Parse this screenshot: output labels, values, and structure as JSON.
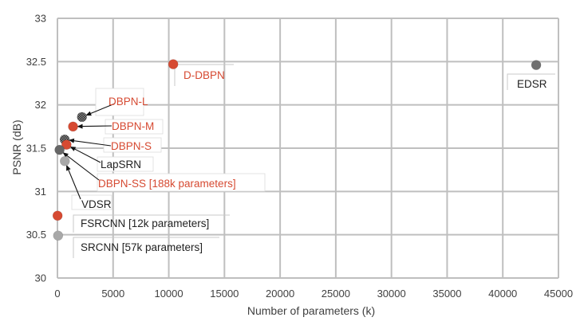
{
  "chart_data": {
    "type": "scatter",
    "title": "",
    "xlabel": "Number of parameters (k)",
    "ylabel": "PSNR (dB)",
    "xlim": [
      0,
      45000
    ],
    "ylim": [
      30,
      33
    ],
    "x_ticks": [
      0,
      5000,
      10000,
      15000,
      20000,
      25000,
      30000,
      35000,
      40000,
      45000
    ],
    "y_ticks": [
      30,
      30.5,
      31,
      31.5,
      32,
      32.5,
      33
    ],
    "grid": true,
    "legend": "none",
    "colors": {
      "red": "#d64a32",
      "gray": "#666666",
      "light_gray": "#a8a8a8",
      "dark_checker": "#4f4f4f"
    },
    "points": [
      {
        "name": "D-DBPN",
        "label": "D-DBPN",
        "x": 10400,
        "y": 32.47,
        "color": "#d64a32",
        "label_color": "#d64a32"
      },
      {
        "name": "EDSR",
        "label": "EDSR",
        "x": 43000,
        "y": 32.46,
        "color": "#707070",
        "label_color": "#222222"
      },
      {
        "name": "DBPN-L",
        "label": "DBPN-L",
        "x": 2200,
        "y": 31.86,
        "color": "#4f4f4f",
        "label_color": "#d64a32"
      },
      {
        "name": "DBPN-M",
        "label": "DBPN-M",
        "x": 1400,
        "y": 31.75,
        "color": "#d64a32",
        "label_color": "#d64a32"
      },
      {
        "name": "DBPN-S",
        "label": "DBPN-S",
        "x": 650,
        "y": 31.6,
        "color": "#4f4f4f",
        "label_color": "#d64a32"
      },
      {
        "name": "LapSRN",
        "label": "LapSRN",
        "x": 812,
        "y": 31.54,
        "color": "#d64a32",
        "label_color": "#222222"
      },
      {
        "name": "DBPN-SS",
        "label": "DBPN-SS [188k parameters]",
        "x": 188,
        "y": 31.48,
        "color": "#666666",
        "label_color": "#d64a32"
      },
      {
        "name": "VDSR",
        "label": "VDSR",
        "x": 665,
        "y": 31.35,
        "color": "#a8a8a8",
        "label_color": "#222222"
      },
      {
        "name": "FSRCNN",
        "label": "FSRCNN [12k parameters]",
        "x": 12,
        "y": 30.72,
        "color": "#d64a32",
        "label_color": "#222222"
      },
      {
        "name": "SRCNN",
        "label": "SRCNN [57k parameters]",
        "x": 57,
        "y": 30.49,
        "color": "#a8a8a8",
        "label_color": "#222222"
      }
    ]
  }
}
